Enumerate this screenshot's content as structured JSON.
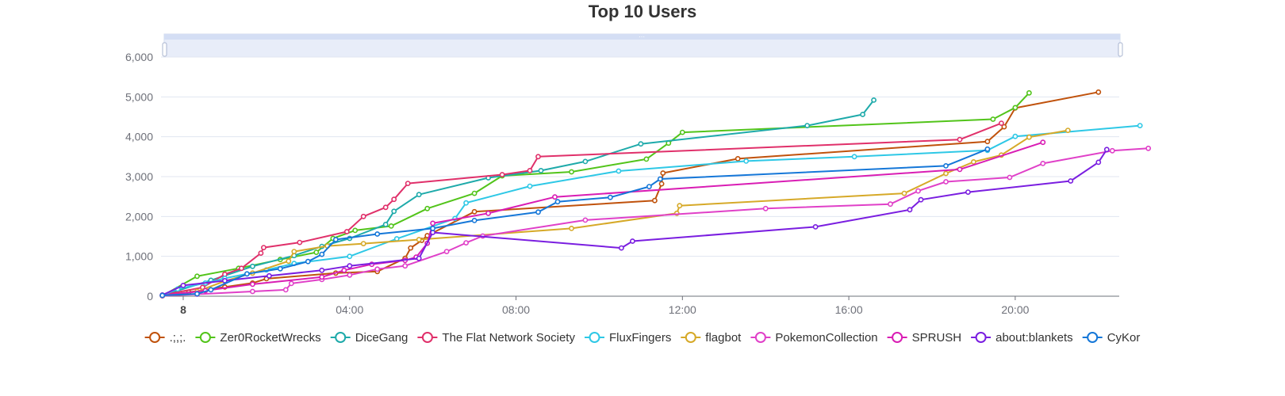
{
  "chart_data": {
    "type": "line",
    "title": "Top 10 Users",
    "xlabel": "",
    "ylabel": "",
    "x_unit": "hours",
    "xlim": [
      -0.8,
      33.75
    ],
    "ylim": [
      0,
      6000
    ],
    "y_ticks": [
      0,
      1000,
      2000,
      3000,
      4000,
      5000,
      6000
    ],
    "y_tick_labels": [
      "0",
      "1,000",
      "2,000",
      "3,000",
      "4,000",
      "5,000",
      "6,000"
    ],
    "x_ticks": [
      0,
      6,
      12,
      18,
      24,
      30
    ],
    "x_tick_labels": [
      "8",
      "04:00",
      "08:00",
      "12:00",
      "16:00",
      "20:00"
    ],
    "grid": true,
    "legend_position": "bottom",
    "datazoom_slider": true,
    "series": [
      {
        "name": ".;,;.",
        "color": "#c0520c",
        "points": [
          [
            -0.75,
            20
          ],
          [
            0.2,
            100
          ],
          [
            1.5,
            230
          ],
          [
            2.5,
            330
          ],
          [
            3.0,
            440
          ],
          [
            5.5,
            580
          ],
          [
            7.0,
            620
          ],
          [
            8.0,
            950
          ],
          [
            8.2,
            1210
          ],
          [
            8.6,
            1400
          ],
          [
            8.8,
            1520
          ],
          [
            10.5,
            2120
          ],
          [
            17.0,
            2400
          ],
          [
            17.25,
            2820
          ],
          [
            17.3,
            3090
          ],
          [
            20.0,
            3450
          ],
          [
            29.0,
            3880
          ],
          [
            29.6,
            4250
          ],
          [
            30.0,
            4720
          ],
          [
            33.0,
            5120
          ]
        ]
      },
      {
        "name": "Zer0RocketWrecks",
        "color": "#52c41a",
        "points": [
          [
            -0.75,
            10
          ],
          [
            0.5,
            500
          ],
          [
            2.0,
            700
          ],
          [
            3.5,
            920
          ],
          [
            4.8,
            1100
          ],
          [
            5.4,
            1450
          ],
          [
            6.2,
            1650
          ],
          [
            7.5,
            1760
          ],
          [
            8.8,
            2200
          ],
          [
            10.5,
            2580
          ],
          [
            11.5,
            3020
          ],
          [
            14.0,
            3120
          ],
          [
            16.7,
            3440
          ],
          [
            17.5,
            3840
          ],
          [
            18.0,
            4110
          ],
          [
            29.2,
            4440
          ],
          [
            30.0,
            4730
          ],
          [
            30.5,
            5100
          ]
        ]
      },
      {
        "name": "DiceGang",
        "color": "#1eaaaa",
        "points": [
          [
            -0.75,
            20
          ],
          [
            1.0,
            400
          ],
          [
            2.5,
            750
          ],
          [
            4.0,
            1020
          ],
          [
            5.0,
            1250
          ],
          [
            6.0,
            1450
          ],
          [
            7.3,
            1800
          ],
          [
            7.6,
            2130
          ],
          [
            8.5,
            2550
          ],
          [
            11.0,
            2970
          ],
          [
            12.9,
            3150
          ],
          [
            14.5,
            3380
          ],
          [
            16.5,
            3820
          ],
          [
            22.5,
            4280
          ],
          [
            24.5,
            4560
          ],
          [
            24.9,
            4920
          ]
        ]
      },
      {
        "name": "The Flat Network Society",
        "color": "#e0306a",
        "points": [
          [
            -0.75,
            30
          ],
          [
            0.7,
            220
          ],
          [
            1.5,
            550
          ],
          [
            2.1,
            700
          ],
          [
            2.8,
            1080
          ],
          [
            2.9,
            1220
          ],
          [
            4.2,
            1350
          ],
          [
            5.9,
            1620
          ],
          [
            6.5,
            2000
          ],
          [
            7.3,
            2230
          ],
          [
            7.6,
            2430
          ],
          [
            8.1,
            2830
          ],
          [
            11.5,
            3050
          ],
          [
            12.5,
            3150
          ],
          [
            12.8,
            3500
          ],
          [
            28.0,
            3930
          ],
          [
            29.5,
            4340
          ]
        ]
      },
      {
        "name": "FluxFingers",
        "color": "#2ec8e6",
        "points": [
          [
            -0.75,
            20
          ],
          [
            -0.2,
            180
          ],
          [
            0.8,
            330
          ],
          [
            1.5,
            450
          ],
          [
            3.0,
            660
          ],
          [
            4.0,
            820
          ],
          [
            6.0,
            1000
          ],
          [
            7.7,
            1440
          ],
          [
            9.8,
            1950
          ],
          [
            10.2,
            2340
          ],
          [
            12.5,
            2760
          ],
          [
            15.7,
            3140
          ],
          [
            20.3,
            3390
          ],
          [
            24.2,
            3500
          ],
          [
            29.0,
            3660
          ],
          [
            30.0,
            4010
          ],
          [
            34.5,
            4280
          ]
        ]
      },
      {
        "name": "flagbot",
        "color": "#d6a928",
        "points": [
          [
            -0.75,
            10
          ],
          [
            0.5,
            120
          ],
          [
            1.5,
            380
          ],
          [
            2.5,
            580
          ],
          [
            3.8,
            880
          ],
          [
            4.0,
            1120
          ],
          [
            5.2,
            1260
          ],
          [
            6.5,
            1320
          ],
          [
            8.5,
            1420
          ],
          [
            14.0,
            1700
          ],
          [
            17.8,
            2080
          ],
          [
            17.9,
            2270
          ],
          [
            26.0,
            2580
          ],
          [
            27.5,
            3080
          ],
          [
            28.5,
            3370
          ],
          [
            29.5,
            3540
          ],
          [
            30.5,
            3990
          ],
          [
            31.9,
            4160
          ]
        ]
      },
      {
        "name": "PokemonCollection",
        "color": "#e040c8",
        "points": [
          [
            -0.75,
            10
          ],
          [
            0.5,
            50
          ],
          [
            2.5,
            120
          ],
          [
            3.7,
            160
          ],
          [
            3.9,
            320
          ],
          [
            5.0,
            420
          ],
          [
            6.0,
            530
          ],
          [
            7.0,
            680
          ],
          [
            8.0,
            760
          ],
          [
            9.5,
            1120
          ],
          [
            10.2,
            1340
          ],
          [
            10.8,
            1510
          ],
          [
            14.5,
            1910
          ],
          [
            21.0,
            2200
          ],
          [
            25.5,
            2310
          ],
          [
            26.5,
            2640
          ],
          [
            27.5,
            2870
          ],
          [
            29.8,
            2980
          ],
          [
            31.0,
            3330
          ],
          [
            33.5,
            3650
          ],
          [
            34.8,
            3710
          ]
        ]
      },
      {
        "name": "SPRUSH",
        "color": "#d91db4",
        "points": [
          [
            -0.75,
            20
          ],
          [
            0.8,
            140
          ],
          [
            2.5,
            300
          ],
          [
            5.0,
            480
          ],
          [
            5.8,
            650
          ],
          [
            6.8,
            800
          ],
          [
            8.0,
            900
          ],
          [
            8.4,
            980
          ],
          [
            8.8,
            1330
          ],
          [
            9.0,
            1830
          ],
          [
            11.0,
            2080
          ],
          [
            13.4,
            2490
          ],
          [
            28.0,
            3180
          ],
          [
            31.0,
            3860
          ]
        ]
      },
      {
        "name": "about:blankets",
        "color": "#7a1ee0",
        "points": [
          [
            -0.75,
            30
          ],
          [
            0.0,
            270
          ],
          [
            1.5,
            390
          ],
          [
            3.1,
            510
          ],
          [
            5.0,
            650
          ],
          [
            6.0,
            760
          ],
          [
            8.5,
            950
          ],
          [
            9.0,
            1600
          ],
          [
            15.8,
            1210
          ],
          [
            16.2,
            1380
          ],
          [
            22.8,
            1740
          ],
          [
            26.2,
            2170
          ],
          [
            26.6,
            2420
          ],
          [
            28.3,
            2610
          ],
          [
            32.0,
            2890
          ],
          [
            33.0,
            3360
          ],
          [
            33.3,
            3680
          ]
        ]
      },
      {
        "name": "CyKor",
        "color": "#1577d8",
        "points": [
          [
            -0.75,
            20
          ],
          [
            0.5,
            60
          ],
          [
            1.0,
            160
          ],
          [
            2.3,
            560
          ],
          [
            3.5,
            690
          ],
          [
            4.5,
            870
          ],
          [
            5.0,
            1050
          ],
          [
            5.5,
            1420
          ],
          [
            7.0,
            1560
          ],
          [
            9.0,
            1700
          ],
          [
            10.5,
            1900
          ],
          [
            12.8,
            2110
          ],
          [
            13.5,
            2370
          ],
          [
            15.4,
            2480
          ],
          [
            16.8,
            2750
          ],
          [
            17.2,
            2940
          ],
          [
            27.5,
            3270
          ],
          [
            29.0,
            3690
          ]
        ]
      }
    ]
  }
}
